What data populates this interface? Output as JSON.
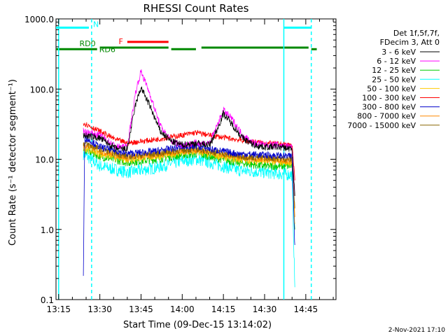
{
  "chart_data": {
    "type": "line",
    "title": "RHESSI Count Rates",
    "xlabel": "Start Time (09-Dec-15 13:14:02)",
    "ylabel": "Count Rate (s⁻¹ detector segment⁻¹)",
    "yscale": "log",
    "ylim": [
      0.1,
      1000.0
    ],
    "xlim": [
      "13:14:02",
      "14:56"
    ],
    "x_ticks": [
      "13:15",
      "13:30",
      "13:45",
      "14:00",
      "14:15",
      "14:30",
      "14:45"
    ],
    "y_ticks": [
      "0.1",
      "1.0",
      "10.0",
      "100.0",
      "1000.0"
    ],
    "grid": false,
    "legend_position": "top-right",
    "legend_header": [
      "Det 1f,5f,7f,",
      "FDecim 3, Att 0"
    ],
    "series": [
      {
        "name": "3 - 6 keV",
        "color": "#000000",
        "x": [
          "13:24",
          "13:30",
          "13:36",
          "13:40",
          "13:43",
          "13:45",
          "13:48",
          "13:52",
          "13:56",
          "14:00",
          "14:05",
          "14:10",
          "14:13",
          "14:15",
          "14:18",
          "14:22",
          "14:26",
          "14:30",
          "14:35",
          "14:40",
          "14:41"
        ],
        "y": [
          22,
          20,
          14,
          14,
          60,
          105,
          60,
          25,
          18,
          16,
          17,
          16,
          28,
          45,
          32,
          20,
          16,
          15,
          15,
          14,
          3
        ]
      },
      {
        "name": "6 - 12 keV",
        "color": "#ff00ff",
        "x": [
          "13:24",
          "13:30",
          "13:36",
          "13:40",
          "13:43",
          "13:45",
          "13:48",
          "13:52",
          "13:56",
          "14:00",
          "14:05",
          "14:10",
          "14:13",
          "14:15",
          "14:18",
          "14:22",
          "14:26",
          "14:30",
          "14:35",
          "14:40",
          "14:41"
        ],
        "y": [
          25,
          22,
          15,
          15,
          90,
          180,
          90,
          30,
          18,
          16,
          17,
          17,
          32,
          50,
          38,
          22,
          17,
          16,
          16,
          15,
          3
        ]
      },
      {
        "name": "12 - 25 keV",
        "color": "#00cc00",
        "x": [
          "13:24",
          "13:30",
          "13:40",
          "13:50",
          "14:00",
          "14:05",
          "14:10",
          "14:20",
          "14:30",
          "14:40",
          "14:41"
        ],
        "y": [
          14,
          11,
          9,
          10,
          11.5,
          12,
          11,
          9,
          8,
          8,
          1
        ]
      },
      {
        "name": "25 - 50 keV",
        "color": "#00ffff",
        "x": [
          "13:24",
          "13:30",
          "13:40",
          "13:50",
          "14:00",
          "14:05",
          "14:10",
          "14:20",
          "14:30",
          "14:40",
          "14:41"
        ],
        "y": [
          12,
          8,
          6.5,
          7.5,
          9.5,
          10,
          9,
          7,
          6.5,
          6,
          0.15
        ]
      },
      {
        "name": "50 - 100 keV",
        "color": "#ffcc00",
        "x": [
          "13:24",
          "13:30",
          "13:40",
          "13:50",
          "14:00",
          "14:05",
          "14:10",
          "14:20",
          "14:30",
          "14:40",
          "14:41"
        ],
        "y": [
          15,
          12,
          10,
          11,
          12.5,
          13,
          12,
          10,
          9.5,
          9,
          1.2
        ]
      },
      {
        "name": "100 - 300 keV",
        "color": "#ff0000",
        "x": [
          "13:24",
          "13:30",
          "13:36",
          "13:40",
          "13:50",
          "14:00",
          "14:05",
          "14:10",
          "14:20",
          "14:30",
          "14:40",
          "14:41"
        ],
        "y": [
          33,
          25,
          19,
          17,
          19,
          22,
          24,
          22,
          19,
          17,
          16,
          5
        ]
      },
      {
        "name": "300 - 800 keV",
        "color": "#0000cc",
        "x": [
          "13:24",
          "13:24.5",
          "13:25",
          "13:30",
          "13:40",
          "13:50",
          "14:00",
          "14:05",
          "14:10",
          "14:20",
          "14:30",
          "14:40",
          "14:41"
        ],
        "y": [
          0.22,
          20,
          20,
          15,
          12,
          13,
          15,
          15.5,
          14,
          12,
          11.5,
          11,
          0.6
        ]
      },
      {
        "name": "800 - 7000 keV",
        "color": "#ff8800",
        "x": [
          "13:24",
          "13:30",
          "13:40",
          "13:50",
          "14:00",
          "14:05",
          "14:10",
          "14:20",
          "14:30",
          "14:40",
          "14:41"
        ],
        "y": [
          16,
          13,
          10.5,
          11.5,
          13,
          13.5,
          12.5,
          10.5,
          10,
          9.5,
          1.5
        ]
      },
      {
        "name": "7000 - 15000 keV",
        "color": "#886600",
        "x": [
          "13:24",
          "13:30",
          "13:40",
          "13:50",
          "14:00",
          "14:05",
          "14:10",
          "14:20",
          "14:30",
          "14:40",
          "14:41"
        ],
        "y": [
          17,
          14,
          11,
          12,
          13.5,
          14,
          13,
          11,
          10.5,
          10,
          2
        ]
      }
    ],
    "vertical_lines": [
      {
        "x": "13:15",
        "color": "#00ffff",
        "style": "solid"
      },
      {
        "x": "13:27",
        "color": "#00ffff",
        "style": "dashed"
      },
      {
        "x": "14:37",
        "color": "#00ffff",
        "style": "solid"
      },
      {
        "x": "14:47",
        "color": "#00ffff",
        "style": "dashed"
      }
    ],
    "flag_bars": [
      {
        "label": "N",
        "color": "#00ffff",
        "y": 750,
        "segments": [
          [
            "13:14:02",
            "13:26"
          ],
          [
            "14:37",
            "14:47"
          ]
        ]
      },
      {
        "label": "F",
        "color": "#ff0000",
        "y": 470,
        "segments": [
          [
            "13:40",
            "13:55"
          ]
        ]
      },
      {
        "label": "RD0",
        "color": "#008800",
        "y": 390,
        "segments": [
          [
            "13:30",
            "13:55"
          ],
          [
            "14:07",
            "14:46"
          ]
        ]
      },
      {
        "label": "RD6",
        "color": "#008800",
        "y": 370,
        "segments": [
          [
            "13:14:02",
            "13:29"
          ],
          [
            "13:56",
            "14:05"
          ],
          [
            "14:47",
            "14:49"
          ]
        ]
      }
    ]
  },
  "footer": {
    "date": "2-Nov-2021 17:10"
  }
}
